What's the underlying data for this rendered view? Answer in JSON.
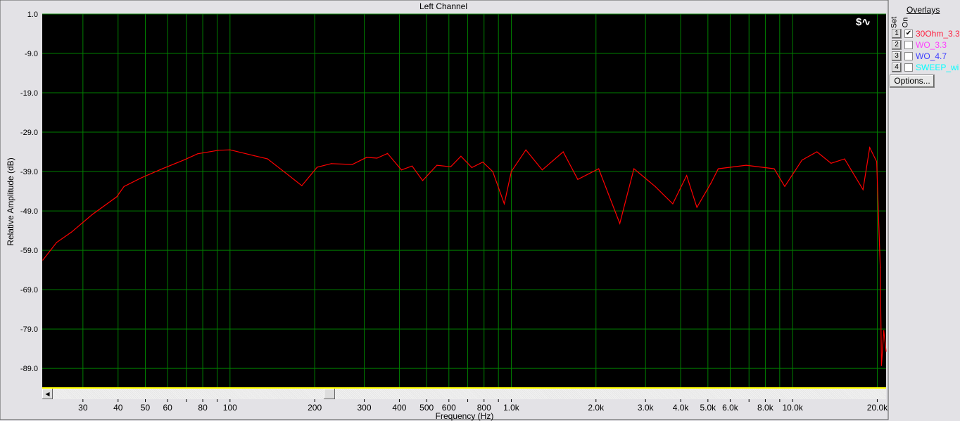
{
  "window": {
    "title": "Left Channel"
  },
  "overlays": {
    "title": "Overlays",
    "set_label": "Set",
    "on_label": "On",
    "options_label": "Options...",
    "items": [
      {
        "num": "1",
        "checked": true,
        "name": "30Ohm_3.3",
        "color": "#ff2040"
      },
      {
        "num": "2",
        "checked": false,
        "name": "WO_3.3",
        "color": "#ff40ff"
      },
      {
        "num": "3",
        "checked": false,
        "name": "WO_4.7",
        "color": "#4040ff"
      },
      {
        "num": "4",
        "checked": false,
        "name": "SWEEP_wi",
        "color": "#00ffff"
      }
    ]
  },
  "chart_data": {
    "type": "line",
    "title": "Left Channel",
    "xlabel": "Frequency (Hz)",
    "ylabel": "Relative Amplitude (dB)",
    "xscale": "log",
    "xlim": [
      21.5,
      21500
    ],
    "ylim": [
      -93.8,
      1.0
    ],
    "grid": true,
    "background": "#000000",
    "grid_color": "#008000",
    "yticks": [
      "1.0",
      "-9.0",
      "-19.0",
      "-29.0",
      "-39.0",
      "-49.0",
      "-59.0",
      "-69.0",
      "-79.0",
      "-89.0"
    ],
    "xticks": [
      {
        "v": 30,
        "l": "30"
      },
      {
        "v": 40,
        "l": "40"
      },
      {
        "v": 50,
        "l": "50"
      },
      {
        "v": 60,
        "l": "60"
      },
      {
        "v": 80,
        "l": "80"
      },
      {
        "v": 100,
        "l": "100"
      },
      {
        "v": 200,
        "l": "200"
      },
      {
        "v": 300,
        "l": "300"
      },
      {
        "v": 400,
        "l": "400"
      },
      {
        "v": 500,
        "l": "500"
      },
      {
        "v": 600,
        "l": "600"
      },
      {
        "v": 800,
        "l": "800"
      },
      {
        "v": 1000,
        "l": "1.0k"
      },
      {
        "v": 2000,
        "l": "2.0k"
      },
      {
        "v": 3000,
        "l": "3.0k"
      },
      {
        "v": 4000,
        "l": "4.0k"
      },
      {
        "v": 5000,
        "l": "5.0k"
      },
      {
        "v": 6000,
        "l": "6.0k"
      },
      {
        "v": 8000,
        "l": "8.0k"
      },
      {
        "v": 10000,
        "l": "10.0k"
      },
      {
        "v": 20000,
        "l": "20.0k"
      }
    ],
    "series": [
      {
        "color": "#ff0000",
        "x": [
          21.6,
          24.2,
          27.3,
          32.4,
          39.6,
          42,
          48.4,
          57.5,
          68.4,
          76.7,
          91,
          100,
          122,
          136,
          162,
          180,
          204,
          229,
          272,
          306,
          333,
          363,
          407,
          444,
          484,
          544,
          609,
          662,
          724,
          792,
          859,
          944,
          1000,
          1127,
          1288,
          1529,
          1723,
          2045,
          2430,
          2729,
          3248,
          3750,
          4200,
          4570,
          5130,
          5440,
          6840,
          8600,
          9380,
          10800,
          12200,
          13700,
          15300,
          17800,
          18800,
          19900,
          20500,
          20700,
          21100,
          21500
        ],
        "y": [
          -61.5,
          -57,
          -54.4,
          -49.9,
          -45.4,
          -42.8,
          -40.6,
          -38.3,
          -36.1,
          -34.5,
          -33.6,
          -33.5,
          -35,
          -35.8,
          -40,
          -42.6,
          -37.9,
          -37,
          -37.2,
          -35.4,
          -35.6,
          -34.4,
          -38.6,
          -37.6,
          -41.3,
          -37.4,
          -37.8,
          -35.1,
          -38,
          -36.6,
          -39,
          -47.2,
          -39,
          -33.5,
          -38.6,
          -34,
          -41,
          -38.3,
          -52.2,
          -38.3,
          -42.8,
          -47.2,
          -40,
          -48.1,
          -41.9,
          -38.3,
          -37.4,
          -38.3,
          -42.8,
          -36.1,
          -34,
          -36.9,
          -35.8,
          -43.6,
          -32.9,
          -36.5,
          -63.3,
          -88.3,
          -79.4,
          -84.7
        ]
      }
    ]
  }
}
